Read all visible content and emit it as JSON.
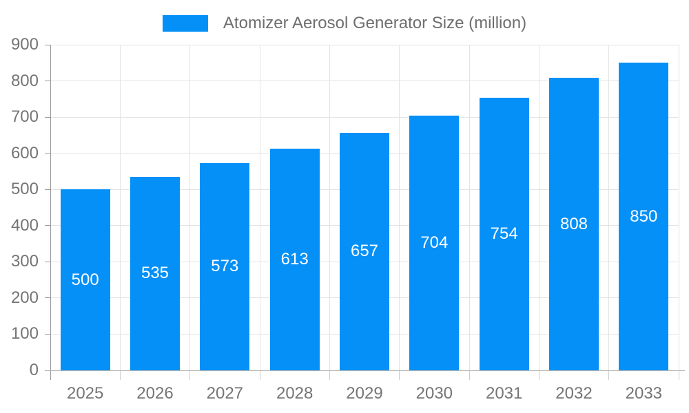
{
  "legend": {
    "label": "Atomizer Aerosol Generator Size (million)"
  },
  "chart_data": {
    "type": "bar",
    "categories": [
      "2025",
      "2026",
      "2027",
      "2028",
      "2029",
      "2030",
      "2031",
      "2032",
      "2033"
    ],
    "values": [
      500,
      535,
      573,
      613,
      657,
      704,
      754,
      808,
      850
    ],
    "series_name": "Atomizer Aerosol Generator Size (million)",
    "title": "",
    "xlabel": "",
    "ylabel": "",
    "ylim": [
      0,
      900
    ],
    "ytick_step": 100,
    "ytick_labels": [
      "0",
      "100",
      "200",
      "300",
      "400",
      "500",
      "600",
      "700",
      "800",
      "900"
    ],
    "grid": true,
    "legend_position": "top-center",
    "value_label_position": "inside-middle"
  },
  "colors": {
    "bar": "#0590f8",
    "grid": "#e3e3e3",
    "axis_y": "#9a9a9a",
    "axis_x": "#b5b5b5",
    "tick_x": "#cccccc",
    "text": "#757575",
    "legend_text": "#6e6e6e",
    "value_label": "#ffffff",
    "background": "#ffffff"
  }
}
